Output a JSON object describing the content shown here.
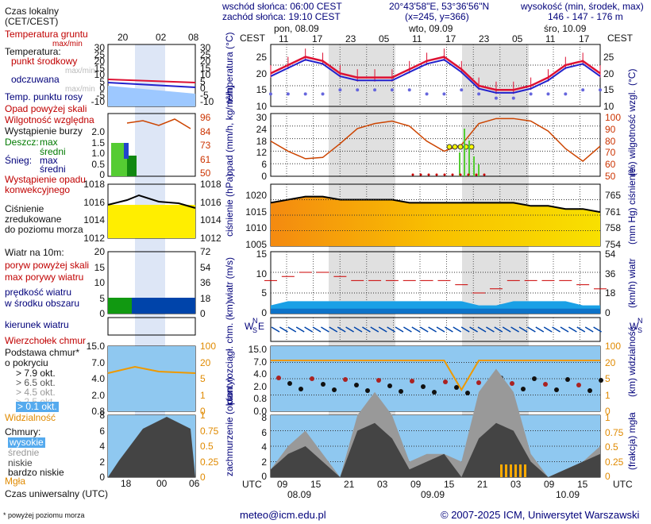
{
  "header": {
    "sunrise": "wschód słońca: 06:00 CEST",
    "sunset": "zachód słońca: 19:10 CEST",
    "coords": "20°43'58\"E, 53°36'56\"N",
    "grid": "(x=245, y=366)",
    "height_label": "wysokość (min, środek, max)",
    "height_values": "146 - 147 - 176 m",
    "cest": "CEST",
    "days": [
      "pon, 08.09",
      "wto, 09.09",
      "śro, 10.09"
    ],
    "top_hours": [
      "11",
      "17",
      "23",
      "05",
      "11",
      "17",
      "23",
      "05",
      "11",
      "17"
    ]
  },
  "footer": {
    "email": "meteo@icm.edu.pl",
    "copyright": "© 2007-2025 ICM, Uniwersytet Warszawski",
    "note": "* powyżej poziomu morza",
    "utc": "UTC",
    "bottom_hours": [
      "09",
      "15",
      "21",
      "03",
      "09",
      "15",
      "21",
      "03",
      "09",
      "15"
    ],
    "dates": [
      "08.09",
      "09.09",
      "10.09"
    ]
  },
  "legend": {
    "time_title": "Czas lokalny",
    "time_sub": "(CET/CEST)",
    "legend_hours_top": [
      "20",
      "02",
      "08"
    ],
    "legend_hours_bottom": [
      "18",
      "00",
      "06"
    ],
    "utc_title": "Czas uniwersalny (UTC)",
    "temp": {
      "ground": "Temperatura gruntu",
      "ground_sub": "max/min",
      "label": "Temperatura:",
      "middle": "punkt środkowy",
      "maxmin": "max/min",
      "felt": "odczuwana",
      "felt_sub": "max/min",
      "dew": "Temp. punktu rosy"
    },
    "precip": {
      "above": "Opad powyżej skali",
      "humidity": "Wilgotność względna",
      "storm": "Wystąpienie burzy",
      "rain": "Deszcz:",
      "snow": "Śnieg:",
      "max": "max",
      "mid": "średni",
      "occurrence": "Wystąpienie opadu",
      "convective": "konwekcyjnego"
    },
    "pressure": {
      "l1": "Ciśnienie",
      "l2": "zredukowane",
      "l3": "do poziomu morza"
    },
    "wind": {
      "title": "Wiatr na 10m:",
      "gusts_above": "poryw powyżej skali",
      "gusts_max": "max porywy wiatru",
      "speed": "prędkość wiatru",
      "area": "w środku obszaru",
      "direction": "kierunek wiatru",
      "vane": "Wierzchołek chmur"
    },
    "clouds": {
      "base": "Podstawa chmur*",
      "cover": "o pokryciu",
      "okt": [
        "> 7.9 okt.",
        "> 6.5 okt.",
        "> 4.5 okt.",
        "> 2.5 okt.",
        "> 0.1 okt."
      ],
      "visibility": "Widzialność",
      "clouds": "Chmury:",
      "high": "wysokie",
      "middle": "średnie",
      "low": "niskie",
      "very_low": "bardzo niskie",
      "fog": "Mgła"
    }
  },
  "axes": {
    "temp_left": [
      "25",
      "20",
      "15",
      "10"
    ],
    "temp_right": [
      "25",
      "20",
      "15",
      "10"
    ],
    "temp_ylabel_left": "temperatura (°C)",
    "temp_ylabel_right": "(°C)",
    "precip_left": [
      "30",
      "24",
      "18",
      "12",
      "6",
      "0"
    ],
    "precip_right": [
      "100",
      "90",
      "80",
      "70",
      "60",
      "50"
    ],
    "precip_ylabel_left": "opad (mm/h, kg/m²/h)",
    "precip_ylabel_right": "(%) wilgotność wzgl.",
    "press_left": [
      "1020",
      "1015",
      "1010",
      "1005"
    ],
    "press_right": [
      "765",
      "761",
      "758",
      "754"
    ],
    "press_ylabel_left": "ciśnienie (hPa)",
    "press_ylabel_right": "(mm Hg) ciśnienie",
    "wind_left": [
      "15",
      "10",
      "5",
      "0"
    ],
    "wind_right": [
      "54",
      "36",
      "18",
      "0"
    ],
    "wind_ylabel_left": "wiatr (m/s)",
    "wind_ylabel_right": "(km/h) wiatr",
    "cloud_left": [
      "15.0",
      "7.0",
      "4.0",
      "2.0",
      "0.8",
      "0.0"
    ],
    "cloud_right": [
      "100",
      "20",
      "5",
      "1",
      "0"
    ],
    "cloud_ylabel_left": "pion. rozciągł. chm. (km)",
    "cloud_ylabel_right": "(km) widzialność",
    "cover_left": [
      "8",
      "6",
      "4",
      "2",
      "0"
    ],
    "cover_right": [
      "1",
      "0.75",
      "0.5",
      "0.25",
      "0"
    ],
    "cover_ylabel_left": "zachmurzenie (oktanty)",
    "cover_ylabel_right": "(frakcja) mgła",
    "legend_temp_left": [
      "30",
      "25",
      "20",
      "15",
      "10",
      "5",
      "0",
      "-5",
      "-10"
    ],
    "legend_temp_right": [
      "30",
      "25",
      "20",
      "15",
      "10",
      "5",
      "0",
      "-5",
      "-10"
    ],
    "legend_precip_left": [
      "2.0",
      "1.5",
      "1.0",
      "0.5",
      "0"
    ],
    "legend_precip_right": [
      "96",
      "84",
      "73",
      "61",
      "50"
    ],
    "legend_press_left": [
      "1018",
      "1016",
      "1014",
      "1012"
    ],
    "legend_press_right": [
      "1018",
      "1016",
      "1014",
      "1012"
    ],
    "legend_wind_left": [
      "20",
      "15",
      "10",
      "5",
      "0"
    ],
    "legend_wind_right": [
      "72",
      "54",
      "36",
      "18",
      "0"
    ],
    "legend_cloud_left": [
      "15.0",
      "7.0",
      "4.0",
      "2.0",
      "0.8"
    ],
    "legend_cloud_right": [
      "100",
      "20",
      "5",
      "1",
      "0"
    ],
    "legend_cover_left": [
      "8",
      "6",
      "4",
      "2",
      "0"
    ],
    "legend_cover_right": [
      "1",
      "0.75",
      "0.5",
      "0.25",
      "0"
    ],
    "wind_rose": {
      "n": "N",
      "w": "W",
      "e": "E",
      "s": "S"
    }
  },
  "colors": {
    "temp": "#dd1133",
    "felt": "#2222cc",
    "dew": "#6666dd",
    "humidity": "#cc4400",
    "rain_max": "#55cc33",
    "rain_mid": "#118811",
    "pressure_fill": "#f8b400",
    "wind_light": "#1aa0e6",
    "wind_dark": "#0044aa",
    "night_band": "#e0e0e0",
    "sky": "#8fc8f0",
    "cloud_dark": "#444444",
    "visibility": "#ee9900"
  },
  "chart_data": [
    {
      "type": "line",
      "name": "temperature",
      "x": [
        "08.09 09",
        "08.09 12",
        "08.09 15",
        "08.09 18",
        "08.09 21",
        "09.09 00",
        "09.09 03",
        "09.09 06",
        "09.09 09",
        "09.09 12",
        "09.09 15",
        "09.09 18",
        "09.09 21",
        "10.09 00",
        "10.09 03",
        "10.09 06",
        "10.09 09",
        "10.09 12",
        "10.09 15",
        "10.09 18"
      ],
      "series": [
        {
          "name": "punkt środkowy",
          "values": [
            18,
            20,
            22,
            21,
            18,
            17,
            17,
            17,
            19,
            21,
            22,
            19,
            15,
            14,
            14,
            15,
            17,
            20,
            21,
            18
          ]
        },
        {
          "name": "Temp. punktu rosy",
          "values": [
            13,
            13,
            13,
            13,
            14,
            14,
            14,
            14,
            14,
            13,
            13,
            14,
            13,
            12,
            12,
            13,
            13,
            13,
            14,
            14
          ]
        }
      ],
      "ylim": [
        10,
        25
      ]
    },
    {
      "type": "line",
      "name": "humidity",
      "series": [
        {
          "name": "Wilgotność względna",
          "values": [
            78,
            70,
            64,
            65,
            76,
            88,
            92,
            94,
            90,
            78,
            70,
            75,
            92,
            96,
            96,
            94,
            86,
            72,
            62,
            74
          ]
        }
      ],
      "ylim": [
        50,
        100
      ]
    },
    {
      "type": "area",
      "name": "pressure",
      "series": [
        {
          "name": "Ciśnienie",
          "values": [
            1019,
            1020,
            1021,
            1021,
            1020,
            1020,
            1020,
            1020,
            1019,
            1019,
            1019,
            1019,
            1019,
            1019,
            1019,
            1018,
            1018,
            1017,
            1017,
            1016
          ]
        }
      ],
      "ylim": [
        1005,
        1025
      ]
    },
    {
      "type": "area",
      "name": "wind",
      "series": [
        {
          "name": "prędkość wiatru",
          "values": [
            2,
            3,
            3,
            3,
            3,
            3,
            3,
            3,
            3,
            3,
            3,
            3,
            2,
            2,
            3,
            3,
            3,
            3,
            2,
            2
          ]
        },
        {
          "name": "max porywy wiatru",
          "values": [
            8,
            9,
            10,
            10,
            9,
            8,
            8,
            8,
            8,
            8,
            8,
            7,
            5,
            6,
            8,
            8,
            8,
            8,
            7,
            6
          ]
        }
      ],
      "ylim": [
        0,
        15
      ]
    },
    {
      "type": "line",
      "name": "visibility",
      "series": [
        {
          "name": "Widzialność",
          "values": [
            20,
            20,
            20,
            20,
            20,
            20,
            20,
            20,
            20,
            20,
            20,
            5,
            20,
            20,
            20,
            20,
            20,
            20,
            20,
            20
          ]
        }
      ]
    },
    {
      "type": "area",
      "name": "cloud cover",
      "series": [
        {
          "name": "niskie",
          "values": [
            1,
            3,
            4,
            2,
            0,
            6,
            7,
            5,
            1,
            2,
            3,
            0,
            5,
            7,
            6,
            2,
            0,
            1,
            2,
            3
          ]
        },
        {
          "name": "średnie",
          "values": [
            0,
            1,
            2,
            1,
            0,
            2,
            4,
            3,
            1,
            1,
            0,
            2,
            6,
            7,
            5,
            1,
            0,
            0,
            0,
            1
          ]
        }
      ],
      "ylim": [
        0,
        8
      ]
    }
  ]
}
